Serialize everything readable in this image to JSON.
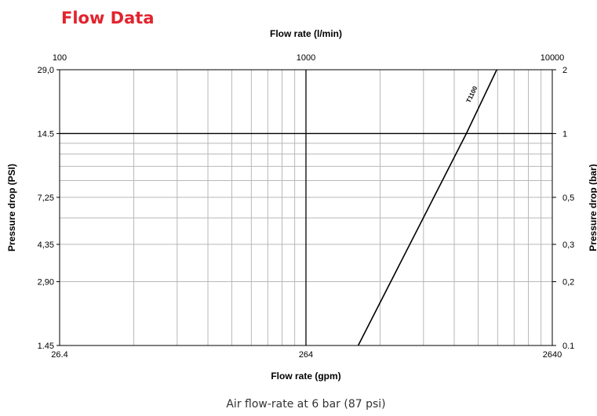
{
  "header": {
    "title": "Flow Data"
  },
  "caption": "Air flow-rate at 6 bar (87 psi)",
  "colors": {
    "title": "#e3232d",
    "minor_grid": "#b8b8b8",
    "major_grid": "#000000",
    "series": "#000000"
  },
  "chart_data": {
    "type": "line",
    "title": "Flow Data",
    "x_scale": "log",
    "y_scale": "log",
    "grid": true,
    "axes": {
      "top": {
        "label": "Flow rate (l/min)",
        "ticks": [
          100,
          1000,
          10000
        ],
        "tick_labels": [
          "100",
          "1000",
          "10000"
        ],
        "range": [
          100,
          10000
        ]
      },
      "bottom": {
        "label": "Flow rate (gpm)",
        "ticks": [
          26.4,
          264,
          2640
        ],
        "tick_labels": [
          "26.4",
          "264",
          "2640"
        ],
        "range": [
          26.4,
          2640
        ]
      },
      "left": {
        "label": "Pressure drop (PSI)",
        "ticks": [
          1.45,
          2.9,
          4.35,
          7.25,
          14.5,
          29.0
        ],
        "tick_labels": [
          "1.45",
          "2,90",
          "4,35",
          "7,25",
          "14.5",
          "29,0"
        ],
        "range": [
          1.45,
          29.0
        ]
      },
      "right": {
        "label": "Pressure drop (bar)",
        "ticks": [
          0.1,
          0.2,
          0.3,
          0.5,
          1,
          2
        ],
        "tick_labels": [
          "0.1",
          "0,2",
          "0,3",
          "0,5",
          "1",
          "2"
        ],
        "range": [
          0.1,
          2
        ]
      }
    },
    "series": [
      {
        "name": "T1100",
        "x_unit": "l/min",
        "y_unit": "bar",
        "points": [
          {
            "x": 1630,
            "y": 0.1
          },
          {
            "x": 4480,
            "y": 1
          },
          {
            "x": 5950,
            "y": 2
          }
        ]
      }
    ]
  }
}
